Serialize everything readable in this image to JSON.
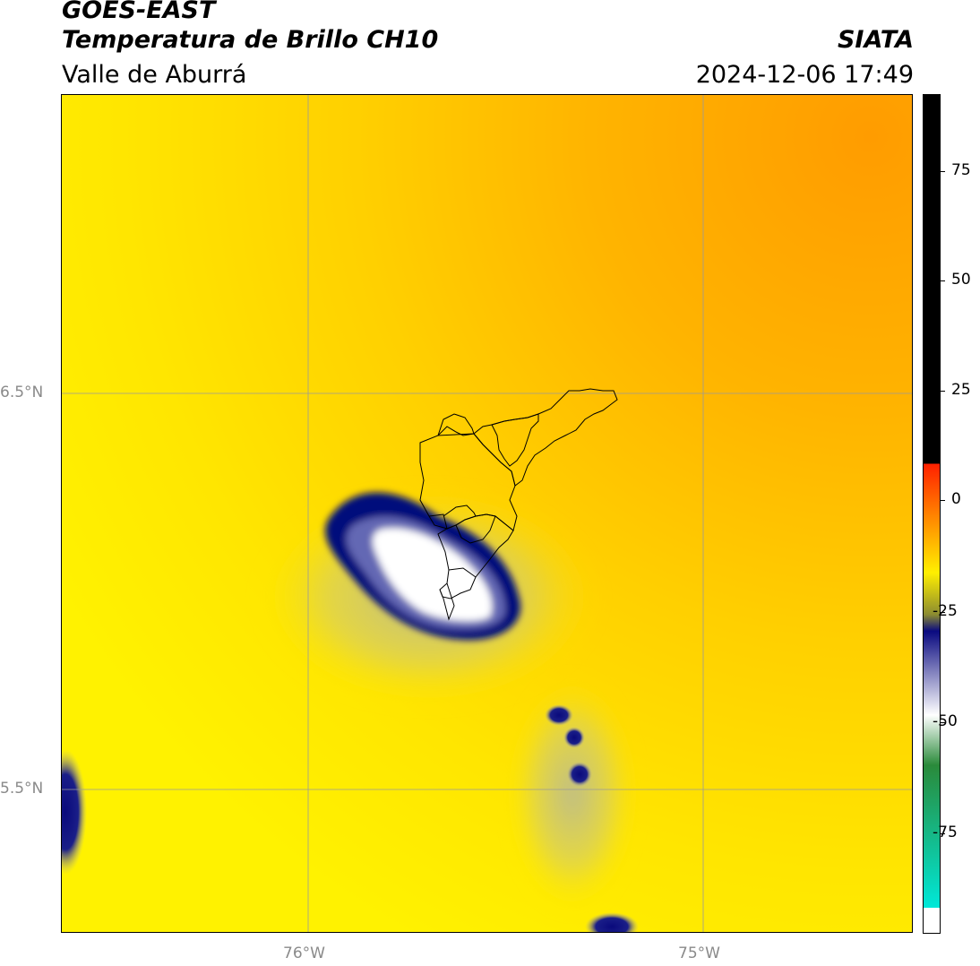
{
  "header": {
    "satellite": "GOES-EAST",
    "product": "Temperatura de Brillo CH10",
    "region": "Valle de Aburrá",
    "agency": "SIATA",
    "datetime": "2024-12-06 17:49"
  },
  "axes": {
    "lat_labels": [
      "6.5°N",
      "5.5°N"
    ],
    "lon_labels": [
      "76°W",
      "75°W"
    ]
  },
  "colorbar": {
    "ticks": [
      "75",
      "50",
      "25",
      "0",
      "-25",
      "-50",
      "-75"
    ],
    "colors": {
      "black": "#000000",
      "red": "#ff2000",
      "orange": "#ffa000",
      "yellow": "#ffef00",
      "olive": "#8c8c30",
      "navy": "#0a0a80",
      "white": "#ffffff",
      "green": "#2a8a3a",
      "cyan": "#00e8d8"
    }
  },
  "map": {
    "background_color": "#ffd800",
    "cloud_core_color": "#ffffff",
    "cloud_edge_color": "#000a80",
    "boundary_color": "#000000"
  }
}
